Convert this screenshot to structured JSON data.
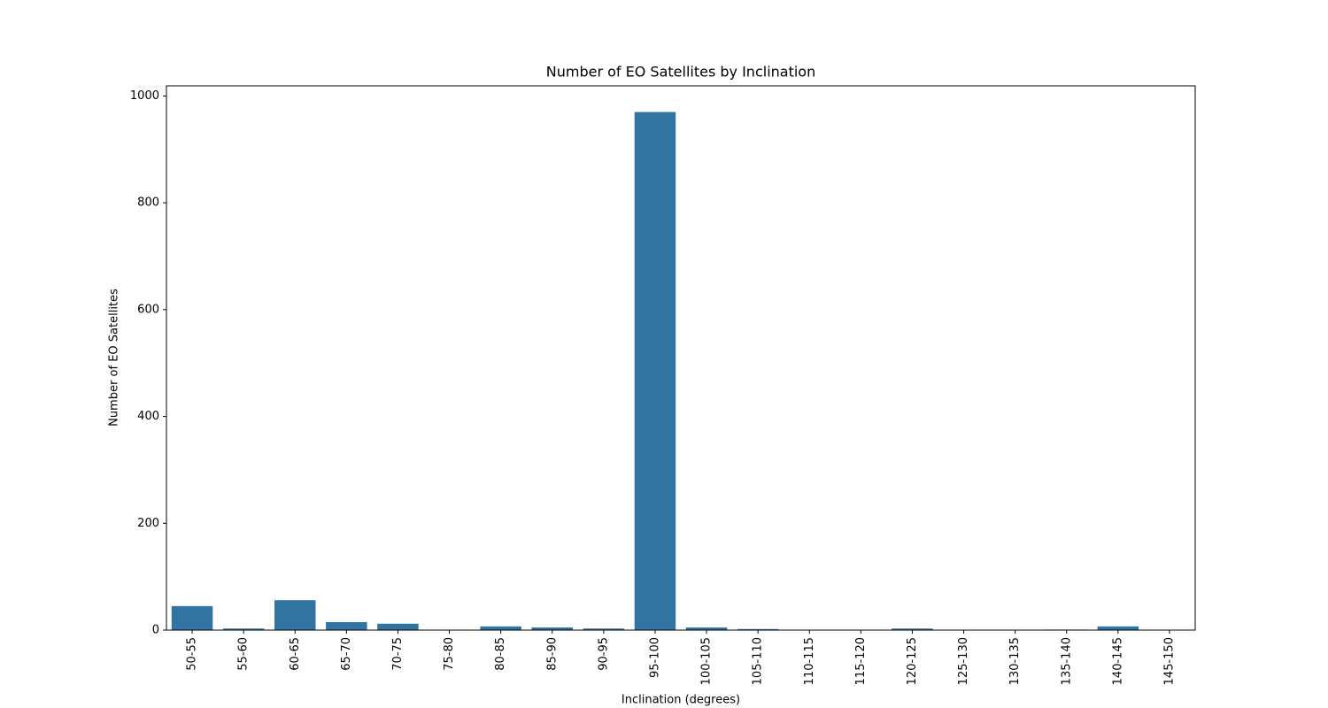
{
  "chart_data": {
    "type": "bar",
    "title": "Number of EO Satellites by Inclination",
    "x_label": "Inclination (degrees)",
    "y_label": "Number of EO Satellites",
    "categories": [
      "50-55",
      "55-60",
      "60-65",
      "65-70",
      "70-75",
      "75-80",
      "80-85",
      "85-90",
      "90-95",
      "95-100",
      "100-105",
      "105-110",
      "110-115",
      "115-120",
      "120-125",
      "125-130",
      "130-135",
      "135-140",
      "140-145",
      "145-150"
    ],
    "values": [
      45,
      3,
      56,
      15,
      12,
      0,
      7,
      5,
      3,
      970,
      5,
      2,
      0,
      0,
      3,
      0,
      0,
      1,
      7,
      0
    ],
    "color": "#3274a1",
    "ylim": [
      0,
      1019
    ],
    "yticks": [
      0,
      200,
      400,
      600,
      800,
      1000
    ],
    "grid": false
  }
}
